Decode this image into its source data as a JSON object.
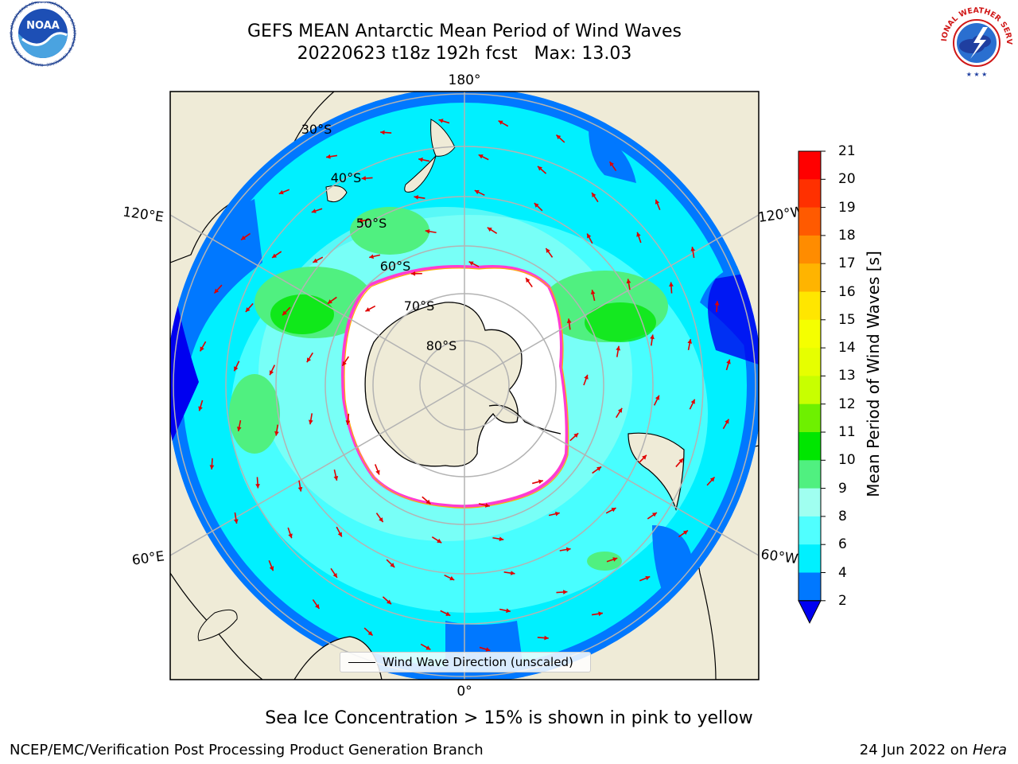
{
  "title": {
    "line1": "GEFS MEAN Antarctic Mean Period of Wind Waves",
    "line2": "20220623 t18z 192h fcst   Max: 13.03"
  },
  "logos": {
    "noaa_text": "NOAA",
    "noaa_ring": "NATIONAL OCEANIC AND ATMOSPHERIC ADMINISTRATION · U.S. DEPARTMENT OF COMMERCE",
    "nws_ring": "NATIONAL WEATHER SERVICE"
  },
  "map": {
    "longitude_labels": {
      "top": "180°",
      "bottom": "0°",
      "upper_left": "120°E",
      "upper_right": "120°W",
      "lower_left": "60°E",
      "lower_right": "60°W"
    },
    "latitude_labels": [
      "30°S",
      "40°S",
      "50°S",
      "60°S",
      "70°S",
      "80°S"
    ],
    "legend_label": "Wind Wave Direction (unscaled)",
    "colors": {
      "land": "#efebd7",
      "ice": "#ffffff",
      "ice_edge": "#ff3cd2",
      "ice_edge_inner": "#ffb000"
    }
  },
  "colorbar": {
    "label": "Mean Period of Wind Waves [s]",
    "ticks": [
      "21",
      "20",
      "19",
      "18",
      "17",
      "16",
      "15",
      "14",
      "13",
      "12",
      "11",
      "10",
      "9",
      "8",
      "6",
      "4",
      "2"
    ],
    "bands": [
      {
        "range": "20-21",
        "color": "#ff0000"
      },
      {
        "range": "19-20",
        "color": "#ff3000"
      },
      {
        "range": "18-19",
        "color": "#ff5a00"
      },
      {
        "range": "17-18",
        "color": "#ff8c00"
      },
      {
        "range": "16-17",
        "color": "#ffb400"
      },
      {
        "range": "15-16",
        "color": "#ffe600"
      },
      {
        "range": "14-15",
        "color": "#f5ff00"
      },
      {
        "range": "13-14",
        "color": "#e6ff00"
      },
      {
        "range": "12-13",
        "color": "#c8ff00"
      },
      {
        "range": "11-12",
        "color": "#6ef000"
      },
      {
        "range": "10-11",
        "color": "#00e600"
      },
      {
        "range": "9-10",
        "color": "#50f080"
      },
      {
        "range": "8-9",
        "color": "#a0fff0"
      },
      {
        "range": "6-8",
        "color": "#50ffff"
      },
      {
        "range": "4-6",
        "color": "#00f0ff"
      },
      {
        "range": "2-4",
        "color": "#0078ff"
      },
      {
        "range": "<2",
        "color": "#0000f0"
      }
    ]
  },
  "ice_note": "Sea Ice Concentration > 15% is shown in pink to yellow",
  "footer": {
    "left": "NCEP/EMC/Verification Post Processing Product Generation Branch",
    "right_date": "24 Jun 2022 on ",
    "right_host": "Hera"
  }
}
